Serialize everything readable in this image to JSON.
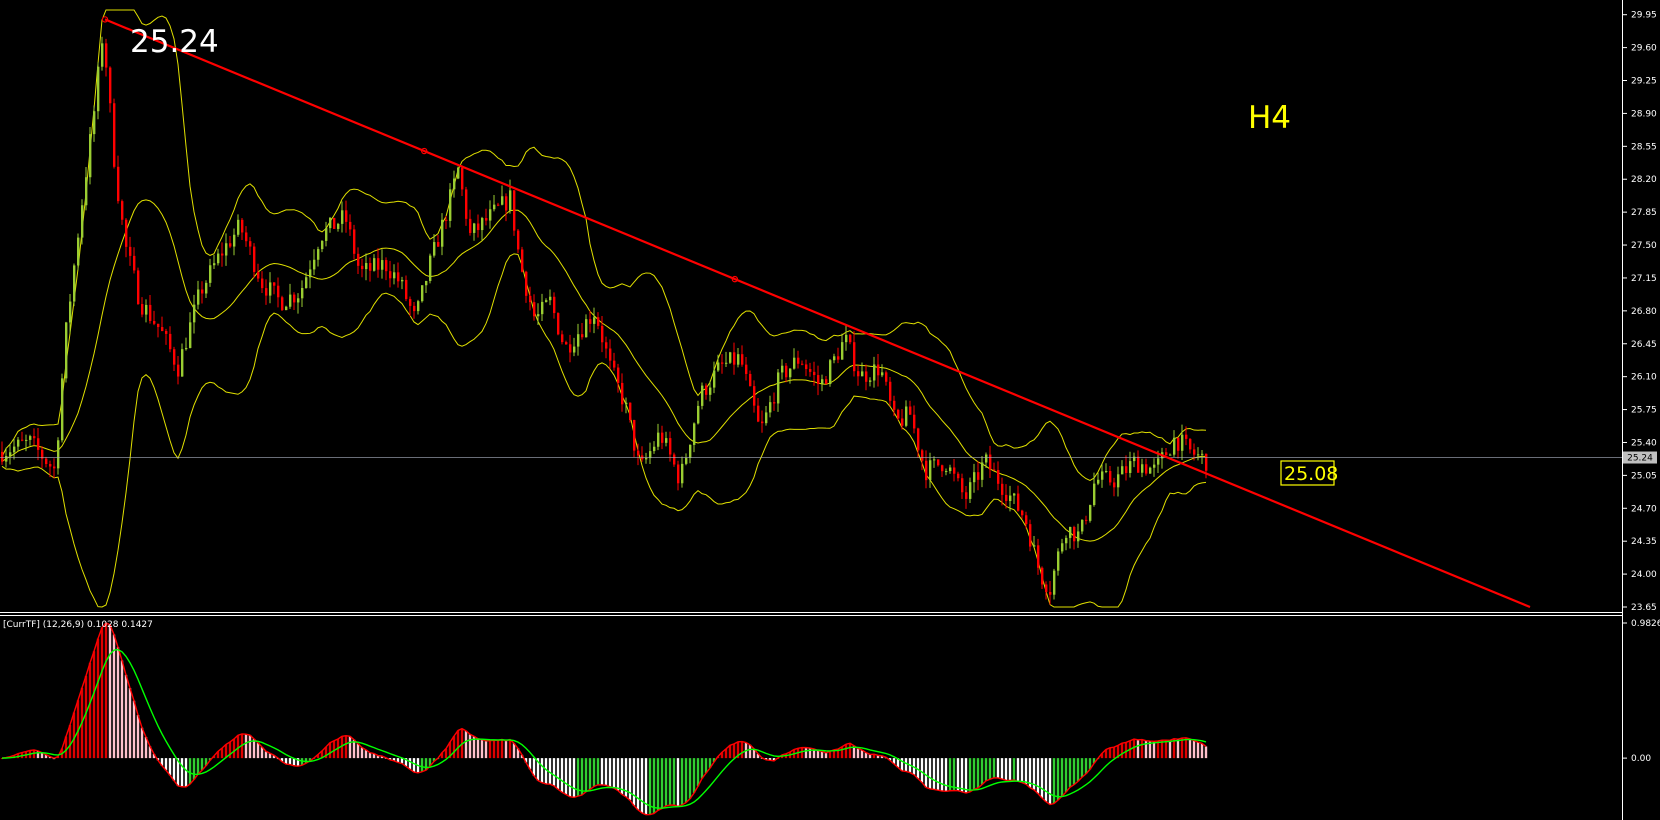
{
  "overlay": {
    "big_price": "25.24",
    "timeframe": "H4",
    "trendline_price": "25.08",
    "current_price": "25.24"
  },
  "colors": {
    "background": "#000000",
    "candle_bull": "#9acd32",
    "candle_bear": "#ff0000",
    "bollinger": "#e0e000",
    "trendline": "#ff0000",
    "macd_pos_rising": "#e00000",
    "macd_pos_falling": "#ffc0cb",
    "macd_neg_falling": "#ffffff",
    "macd_neg_rising": "#32cd32",
    "macd_line": "#ff0000",
    "signal_line": "#00ff00"
  },
  "chart_data": [
    {
      "type": "candlestick",
      "name": "price",
      "ylim": [
        23.65,
        30.0
      ],
      "y_ticks": [
        "29.95",
        "29.60",
        "29.25",
        "28.90",
        "28.55",
        "28.20",
        "27.85",
        "27.50",
        "27.15",
        "26.80",
        "26.45",
        "26.10",
        "25.75",
        "25.40",
        "25.05",
        "24.70",
        "24.35",
        "24.00",
        "23.65"
      ],
      "current_price": 25.24,
      "close_path": [
        [
          0,
          25.3
        ],
        [
          30,
          25.4
        ],
        [
          55,
          25.1
        ],
        [
          65,
          26.5
        ],
        [
          80,
          27.8
        ],
        [
          95,
          29.0
        ],
        [
          103,
          29.8
        ],
        [
          115,
          28.3
        ],
        [
          125,
          27.5
        ],
        [
          140,
          26.9
        ],
        [
          160,
          26.6
        ],
        [
          178,
          26.2
        ],
        [
          200,
          27.0
        ],
        [
          220,
          27.4
        ],
        [
          240,
          27.7
        ],
        [
          262,
          27.1
        ],
        [
          280,
          26.9
        ],
        [
          300,
          27.0
        ],
        [
          320,
          27.6
        ],
        [
          345,
          27.8
        ],
        [
          360,
          27.2
        ],
        [
          385,
          27.3
        ],
        [
          400,
          27.1
        ],
        [
          415,
          26.7
        ],
        [
          430,
          27.3
        ],
        [
          445,
          27.8
        ],
        [
          458,
          28.3
        ],
        [
          470,
          27.6
        ],
        [
          490,
          27.8
        ],
        [
          510,
          28.0
        ],
        [
          520,
          27.3
        ],
        [
          535,
          26.7
        ],
        [
          550,
          26.9
        ],
        [
          565,
          26.4
        ],
        [
          580,
          26.6
        ],
        [
          595,
          26.8
        ],
        [
          610,
          26.2
        ],
        [
          625,
          25.8
        ],
        [
          640,
          25.1
        ],
        [
          660,
          25.5
        ],
        [
          680,
          25.0
        ],
        [
          700,
          25.9
        ],
        [
          720,
          26.2
        ],
        [
          740,
          26.3
        ],
        [
          760,
          25.5
        ],
        [
          780,
          26.1
        ],
        [
          800,
          26.3
        ],
        [
          820,
          26.0
        ],
        [
          845,
          26.5
        ],
        [
          860,
          26.1
        ],
        [
          880,
          26.2
        ],
        [
          895,
          25.6
        ],
        [
          910,
          25.7
        ],
        [
          925,
          25.1
        ],
        [
          945,
          25.2
        ],
        [
          965,
          24.8
        ],
        [
          985,
          25.2
        ],
        [
          1005,
          24.9
        ],
        [
          1025,
          24.6
        ],
        [
          1040,
          24.0
        ],
        [
          1050,
          23.85
        ],
        [
          1065,
          24.5
        ],
        [
          1080,
          24.4
        ],
        [
          1095,
          25.0
        ],
        [
          1115,
          25.0
        ],
        [
          1135,
          25.2
        ],
        [
          1155,
          25.1
        ],
        [
          1175,
          25.45
        ],
        [
          1190,
          25.3
        ],
        [
          1207,
          25.2
        ]
      ],
      "trendline": {
        "start": [
          105,
          29.9
        ],
        "end": [
          1530,
          23.65
        ],
        "label": "25.08"
      }
    },
    {
      "type": "macd",
      "name": "[CurrTF] (12,26,9) 0.1028 0.1427",
      "params": "(12,26,9)",
      "values": [
        0.1028,
        0.1427
      ],
      "y_ticks": [
        "0.9826",
        "0.00"
      ],
      "ylim": [
        -0.45,
        0.9826
      ]
    }
  ]
}
